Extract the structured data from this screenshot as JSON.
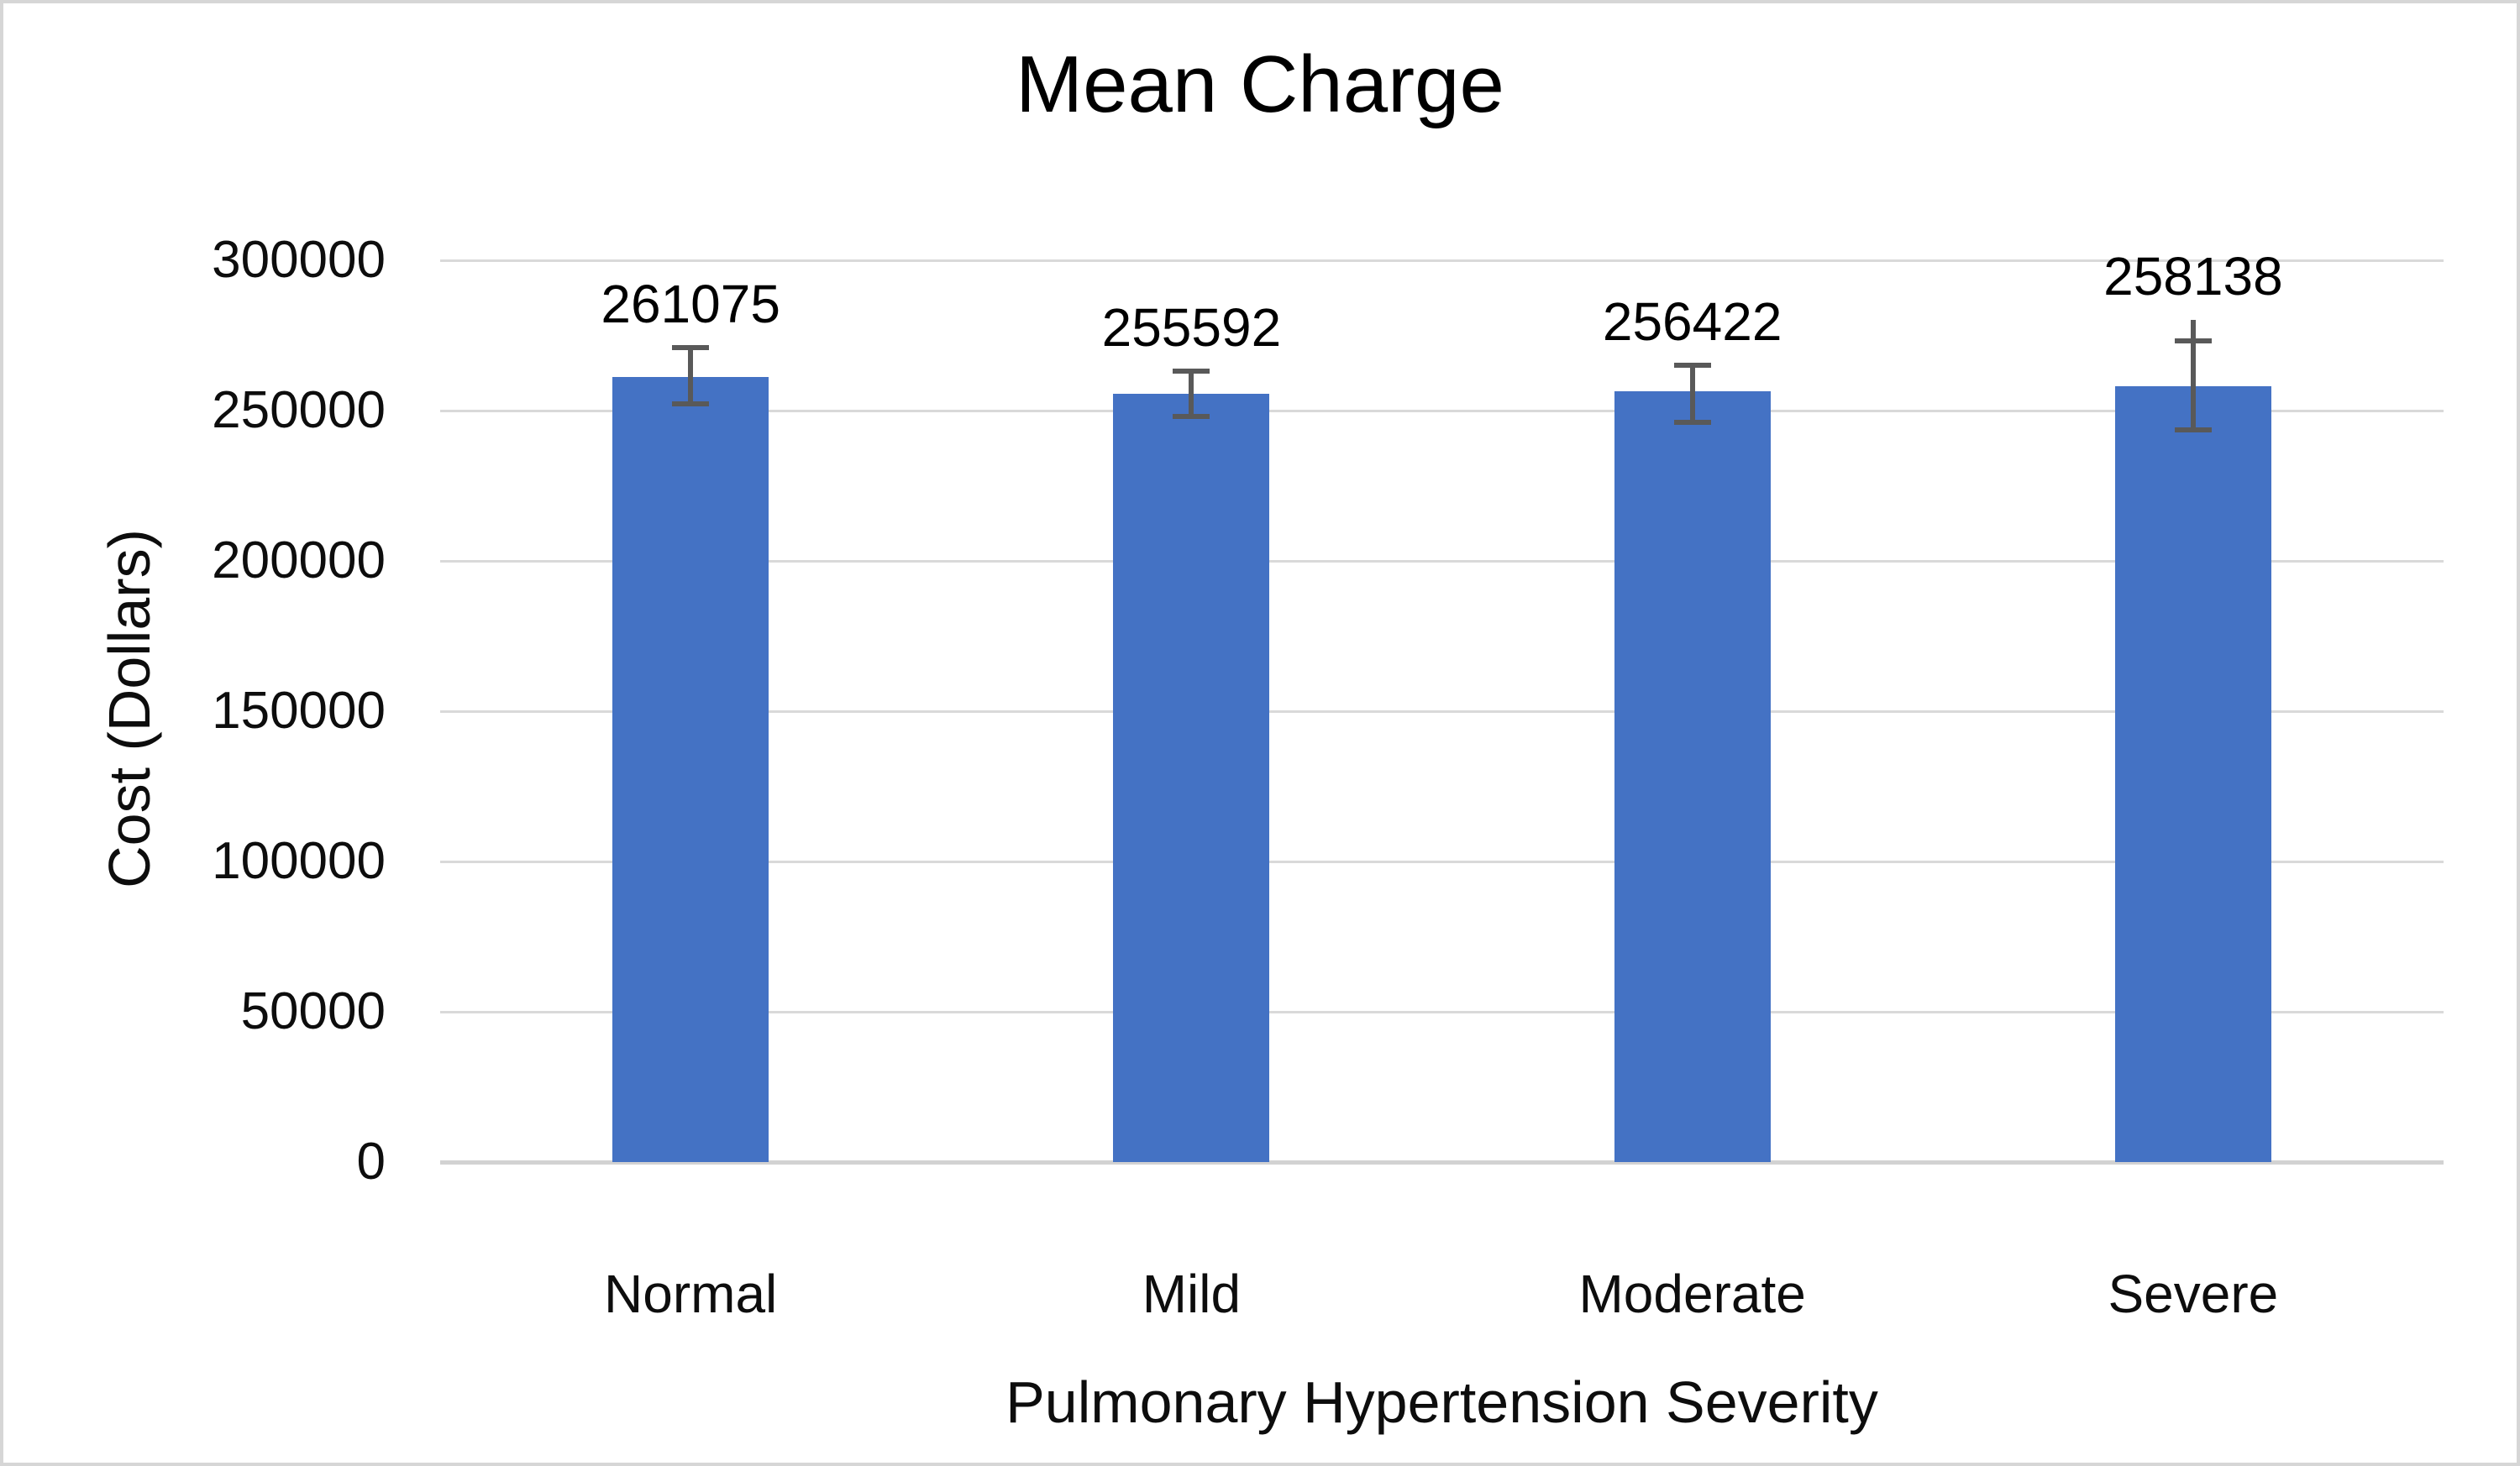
{
  "chart_data": {
    "type": "bar",
    "title": "Mean Charge",
    "xlabel": "Pulmonary Hypertension Severity",
    "ylabel": "Cost (Dollars)",
    "categories": [
      "Normal",
      "Mild",
      "Moderate",
      "Severe"
    ],
    "values": [
      261075,
      255592,
      256422,
      258138
    ],
    "data_labels": [
      "261075",
      "255592",
      "256422",
      "258138"
    ],
    "error_bars": {
      "plus": [
        9900,
        7500,
        8600,
        15000
      ],
      "minus": [
        8900,
        7600,
        10400,
        14500
      ],
      "line_top_extra": [
        0,
        0,
        0,
        7000
      ]
    },
    "ylim": [
      0,
      300000
    ],
    "ytick_step": 50000,
    "yticks": [
      "300000",
      "250000",
      "200000",
      "150000",
      "100000",
      "50000",
      "0"
    ],
    "grid": true,
    "legend": "none",
    "colors": {
      "bar": "#4472C4",
      "error_bar": "#595959",
      "gridline": "#D9D9D9",
      "axis_line": "#D2D2D2",
      "frame_border": "#D6D6D6",
      "text": "#0D0D0D"
    }
  }
}
